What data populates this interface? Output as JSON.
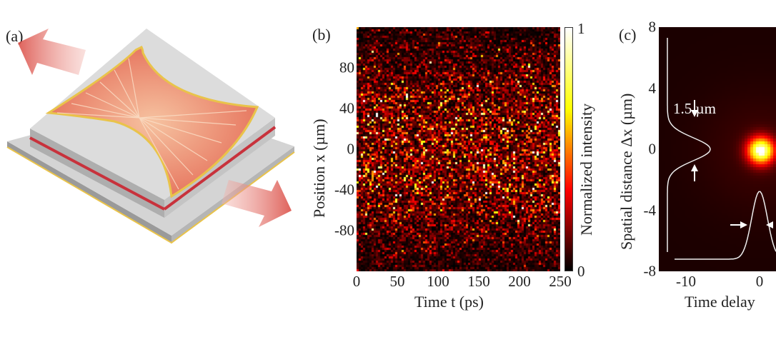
{
  "figure": {
    "panel_a": {
      "label": "(a)",
      "colors": {
        "plate": "#c8c8c8",
        "fan": "#e8836a",
        "stripe": "#c8323c",
        "edge": "#e9c34a",
        "arrow": "#d9463e"
      }
    },
    "panel_b": {
      "label": "(b)"
    },
    "panel_c": {
      "label": "(c)",
      "annotation": "1.5 µm"
    }
  },
  "chart_data": [
    {
      "type": "heatmap",
      "panel": "(b)",
      "xlabel": "Time t (ps)",
      "ylabel": "Position x (µm)",
      "xlim": [
        0,
        250
      ],
      "ylim": [
        -120,
        120
      ],
      "xticks": [
        "0",
        "50",
        "100",
        "150",
        "200",
        "250"
      ],
      "yticks": [
        "80",
        "40",
        "0",
        "-40",
        "-80"
      ],
      "colorbar": {
        "label": "Normalized intensity",
        "min": "0",
        "max": "1",
        "colormap": [
          "#000000",
          "#5a0000",
          "#c80000",
          "#ff6a00",
          "#ffd200",
          "#ffff80",
          "#ffffff"
        ]
      },
      "description_values": {
        "pattern": "random speckle",
        "envelope_center_um": 0,
        "envelope_width_um": 80
      }
    },
    {
      "type": "heatmap",
      "panel": "(c)",
      "xlabel": "Time delay",
      "ylabel": "Spatial distance Δx (µm)",
      "ylim": [
        -8,
        8
      ],
      "xticks": [
        "-10",
        "0"
      ],
      "yticks": [
        "8",
        "4",
        "0",
        "-4",
        "-8"
      ],
      "peak": {
        "x": 0,
        "y": 0
      },
      "spatial_profile_fwhm_um": 1.5
    }
  ]
}
